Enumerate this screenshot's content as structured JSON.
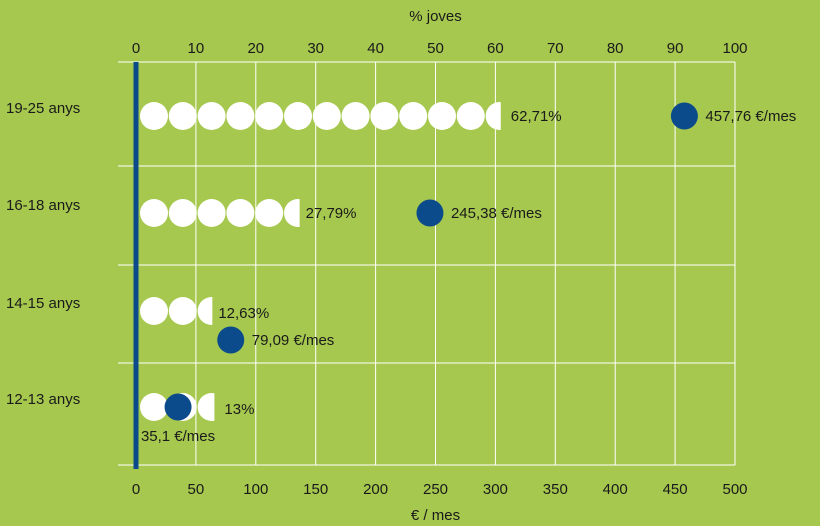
{
  "chart_data": {
    "type": "dot-pictograph",
    "top_axis": {
      "label": "% joves",
      "range": [
        0,
        100
      ],
      "ticks": [
        0,
        10,
        20,
        30,
        40,
        50,
        60,
        70,
        80,
        90,
        100
      ]
    },
    "bottom_axis": {
      "label": "€ / mes",
      "range": [
        0,
        500
      ],
      "ticks": [
        0,
        50,
        100,
        150,
        200,
        250,
        300,
        350,
        400,
        450,
        500
      ]
    },
    "grid": true,
    "categories": [
      "19-25 anys",
      "16-18 anys",
      "14-15 anys",
      "12-13 anys"
    ],
    "series": [
      {
        "values": [
          62.71,
          27.79,
          12.63,
          13
        ],
        "value_labels": [
          "62,71%",
          "27,79%",
          "12,63%",
          "13%"
        ],
        "color": "#ffffff"
      },
      {
        "values": [
          457.76,
          245.38,
          79.09,
          35.1
        ],
        "value_labels": [
          "457,76 €/mes",
          "245,38 €/mes",
          "79,09 €/mes",
          "35,1 €/mes"
        ],
        "color": "#0b4a8b"
      }
    ]
  },
  "colors": {
    "background": "#a6c84f",
    "grid": "#ffffff",
    "axis": "#0b4a8b",
    "percent_dot": "#ffffff",
    "euro_dot": "#0b4a8b"
  }
}
